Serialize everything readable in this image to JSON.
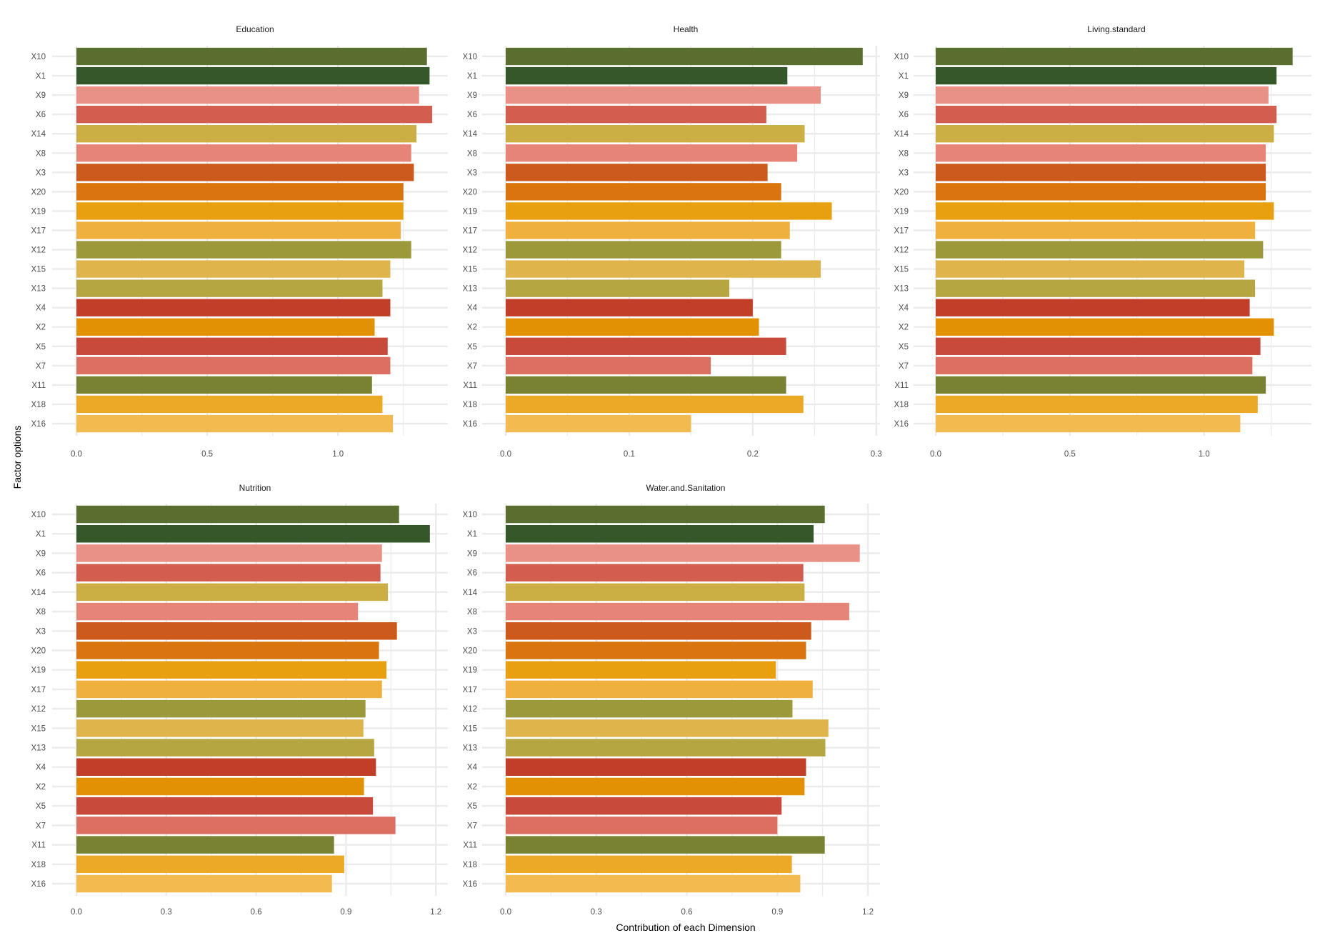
{
  "chart_data": {
    "type": "bar",
    "orientation": "horizontal",
    "layout": "facet_wrap",
    "xlabel": "Contribution of each Dimension",
    "ylabel": "Factor options",
    "grid": true,
    "legend": "none",
    "categories": [
      "X10",
      "X1",
      "X9",
      "X6",
      "X14",
      "X8",
      "X3",
      "X20",
      "X19",
      "X17",
      "X12",
      "X15",
      "X13",
      "X4",
      "X2",
      "X5",
      "X7",
      "X11",
      "X18",
      "X16"
    ],
    "colors": {
      "X10": "#5a6e30",
      "X1": "#35582a",
      "X9": "#ea9187",
      "X6": "#d35d4f",
      "X14": "#cbae44",
      "X8": "#e68577",
      "X3": "#cd5a1d",
      "X20": "#d9740f",
      "X19": "#e8a010",
      "X17": "#efb03d",
      "X12": "#9c993b",
      "X15": "#deb44b",
      "X13": "#b6a641",
      "X4": "#c13e28",
      "X2": "#e29004",
      "X5": "#c84a3b",
      "X7": "#dc6e62",
      "X11": "#798233",
      "X18": "#eba925",
      "X16": "#f2ba4f"
    },
    "panels": [
      {
        "title": "Education",
        "xlim": [
          0,
          1.42
        ],
        "xticks": [
          0.0,
          0.5,
          1.0
        ],
        "xtick_labels": [
          "0.0",
          "0.5",
          "1.0"
        ],
        "values": [
          1.34,
          1.35,
          1.31,
          1.36,
          1.3,
          1.28,
          1.29,
          1.25,
          1.25,
          1.24,
          1.28,
          1.2,
          1.17,
          1.2,
          1.14,
          1.19,
          1.2,
          1.13,
          1.17,
          1.21
        ]
      },
      {
        "title": "Health",
        "xlim": [
          0,
          0.303
        ],
        "xticks": [
          0.0,
          0.1,
          0.2,
          0.3
        ],
        "xtick_labels": [
          "0.0",
          "0.1",
          "0.2",
          "0.3"
        ],
        "values": [
          0.289,
          0.228,
          0.255,
          0.211,
          0.242,
          0.236,
          0.212,
          0.223,
          0.264,
          0.23,
          0.223,
          0.255,
          0.181,
          0.2,
          0.205,
          0.227,
          0.166,
          0.227,
          0.241,
          0.15
        ]
      },
      {
        "title": "Living.standard",
        "xlim": [
          0,
          1.4
        ],
        "xticks": [
          0.0,
          0.5,
          1.0
        ],
        "xtick_labels": [
          "0.0",
          "0.5",
          "1.0"
        ],
        "values": [
          1.33,
          1.27,
          1.24,
          1.27,
          1.26,
          1.23,
          1.23,
          1.23,
          1.26,
          1.19,
          1.22,
          1.15,
          1.19,
          1.17,
          1.26,
          1.21,
          1.18,
          1.23,
          1.2,
          1.135
        ]
      },
      {
        "title": "Nutrition",
        "xlim": [
          0,
          1.24
        ],
        "xticks": [
          0.0,
          0.3,
          0.6,
          0.9,
          1.2
        ],
        "xtick_labels": [
          "0.0",
          "0.3",
          "0.6",
          "0.9",
          "1.2"
        ],
        "values": [
          1.077,
          1.18,
          1.02,
          1.015,
          1.04,
          0.94,
          1.07,
          1.01,
          1.035,
          1.02,
          0.965,
          0.958,
          0.994,
          1.0,
          0.96,
          0.99,
          1.065,
          0.86,
          0.894,
          0.853
        ]
      },
      {
        "title": "Water.and.Sanitation",
        "xlim": [
          0,
          1.24
        ],
        "xticks": [
          0.0,
          0.3,
          0.6,
          0.9,
          1.2
        ],
        "xtick_labels": [
          "0.0",
          "0.3",
          "0.6",
          "0.9",
          "1.2"
        ],
        "values": [
          1.057,
          1.02,
          1.173,
          0.986,
          0.99,
          1.138,
          1.012,
          0.995,
          0.895,
          1.017,
          0.95,
          1.069,
          1.059,
          0.995,
          0.99,
          0.914,
          0.9,
          1.057,
          0.948,
          0.976
        ]
      }
    ]
  }
}
